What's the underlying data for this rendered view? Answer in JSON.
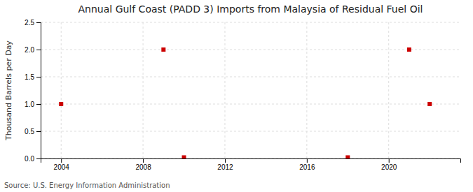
{
  "chart_data": {
    "type": "scatter",
    "title": "Annual Gulf Coast (PADD 3) Imports from Malaysia of Residual Fuel Oil",
    "ylabel": "Thousand Barrels per Day",
    "source": "Source: U.S. Energy Information Administration",
    "x": [
      2004,
      2009,
      2010,
      2018,
      2021,
      2022
    ],
    "values": [
      1.0,
      2.0,
      0.02,
      0.02,
      2.0,
      1.0
    ],
    "color": "#cc0000",
    "marker": "square",
    "xlim": [
      2003.0,
      2023.5
    ],
    "ylim": [
      0.0,
      2.5
    ],
    "xticks": [
      2004,
      2008,
      2012,
      2016,
      2020
    ],
    "yticks": [
      {
        "value": 0.0,
        "label": "0.0"
      },
      0.5,
      {
        "value": 1.0,
        "label": "1.0"
      },
      1.5,
      {
        "value": 2.0,
        "label": "2.0"
      },
      2.5
    ],
    "grid": true
  }
}
